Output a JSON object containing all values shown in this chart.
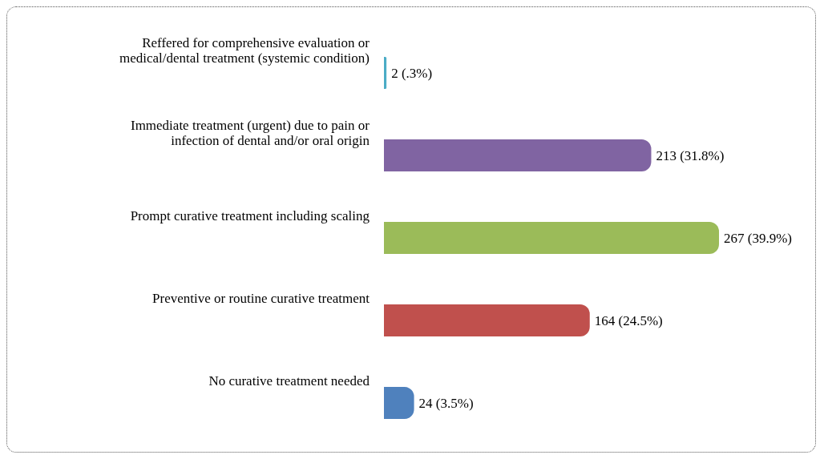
{
  "chart_data": {
    "type": "bar",
    "orientation": "horizontal",
    "categories": [
      "Reffered for comprehensive evaluation or medical/dental treatment (systemic condition)",
      "Immediate treatment (urgent) due to pain or infection of dental and/or oral origin",
      "Prompt curative treatment including scaling",
      "Preventive or routine curative treatment",
      "No curative treatment needed"
    ],
    "values": [
      2,
      213,
      267,
      164,
      24
    ],
    "colors": [
      "#4bacc6",
      "#8064a2",
      "#9bbb59",
      "#c0504d",
      "#4f81bd"
    ],
    "value_labels": [
      "2 (.3%)",
      "213 (31.8%)",
      "267 (39.9%)",
      "164 (24.5%)",
      "24 (3.5%)"
    ],
    "grid": false,
    "legend": false
  }
}
